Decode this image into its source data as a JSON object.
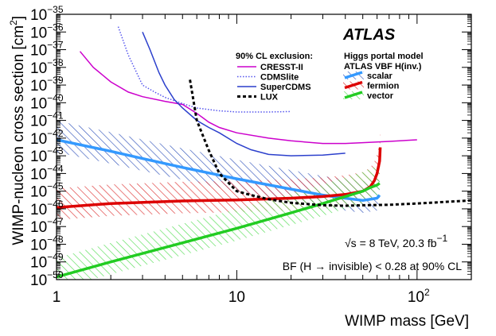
{
  "chart_data": {
    "type": "line",
    "xlabel": "WIMP mass [GeV]",
    "ylabel": "WIMP-nucleon cross section [cm",
    "ylabel_sup": "2",
    "ylabel_close": "]",
    "xscale": "log",
    "yscale": "log",
    "xlim": [
      1,
      200
    ],
    "ylim": [
      1e-50,
      1e-35
    ],
    "x_tick_labels": [
      "1",
      "10"
    ],
    "x_tick_label_hundred": {
      "base": "10",
      "exp": "2"
    },
    "y_tick_labels": [
      {
        "base": "10",
        "exp": "−50"
      },
      {
        "base": "10",
        "exp": "−49"
      },
      {
        "base": "10",
        "exp": "−48"
      },
      {
        "base": "10",
        "exp": "−47"
      },
      {
        "base": "10",
        "exp": "−46"
      },
      {
        "base": "10",
        "exp": "−45"
      },
      {
        "base": "10",
        "exp": "−44"
      },
      {
        "base": "10",
        "exp": "−43"
      },
      {
        "base": "10",
        "exp": "−42"
      },
      {
        "base": "10",
        "exp": "−41"
      },
      {
        "base": "10",
        "exp": "−40"
      },
      {
        "base": "10",
        "exp": "−39"
      },
      {
        "base": "10",
        "exp": "−38"
      },
      {
        "base": "10",
        "exp": "−37"
      },
      {
        "base": "10",
        "exp": "−36"
      },
      {
        "base": "10",
        "exp": "−35"
      }
    ],
    "atlas_label": "ATLAS",
    "legend_left_header": "90% CL exclusion:",
    "legend_right_header_1": "Higgs portal model",
    "legend_right_header_2": "ATLAS VBF H(inv.)",
    "annotation_energy": {
      "prefix": "√s = 8 TeV,  20.3 fb",
      "sup": "−1"
    },
    "annotation_bf": "BF (H → invisible) < 0.28 at 90% CL",
    "series": [
      {
        "name": "CRESST-II",
        "group": "exclusion",
        "color": "#cc00cc",
        "style": "solid",
        "x": [
          1.35,
          1.6,
          2.0,
          2.5,
          3.0,
          4.0,
          5.0,
          6.0,
          7.0,
          8.0,
          10.0,
          15.0,
          20.0,
          30.0,
          40.0,
          50.0,
          70.0,
          100.0
        ],
        "y": [
          8e-38,
          1e-38,
          1.5e-39,
          4e-40,
          2.2e-40,
          1.2e-40,
          8e-41,
          2.5e-41,
          8e-42,
          4e-42,
          2e-42,
          1e-42,
          7e-43,
          5e-43,
          5e-43,
          5.5e-43,
          6.5e-43,
          8e-43
        ]
      },
      {
        "name": "CDMSlite",
        "group": "exclusion",
        "color": "#5555ee",
        "style": "dotted",
        "x": [
          2.2,
          2.5,
          3.0,
          3.5,
          4.0,
          5.0,
          6.0,
          8.0,
          10.0,
          15.0,
          20.0
        ],
        "y": [
          2e-36,
          5e-38,
          1e-39,
          4e-40,
          2e-40,
          9e-41,
          5e-41,
          3.5e-41,
          3e-41,
          3e-41,
          3.2e-41
        ]
      },
      {
        "name": "SuperCDMS",
        "group": "exclusion",
        "color": "#2b3fcc",
        "style": "solid",
        "x": [
          3.0,
          3.3,
          3.7,
          4.0,
          4.5,
          5.0,
          6.0,
          7.0,
          8.0,
          10.0,
          12.0,
          15.0,
          20.0,
          30.0,
          40.0
        ],
        "y": [
          1e-36,
          1e-37,
          5e-39,
          1e-39,
          1.5e-40,
          5e-41,
          1e-41,
          4e-42,
          2e-42,
          5e-43,
          2.2e-43,
          1.2e-43,
          1e-43,
          1.1e-43,
          1.4e-43
        ]
      },
      {
        "name": "LUX",
        "group": "exclusion",
        "color": "#000000",
        "style": "dashed",
        "x": [
          5.5,
          6.0,
          7.0,
          8.0,
          10.0,
          12.0,
          15.0,
          20.0,
          30.0,
          40.0,
          50.0,
          70.0,
          100.0,
          200.0
        ],
        "y": [
          2e-39,
          1e-41,
          2e-43,
          1e-44,
          1e-45,
          6e-46,
          3.5e-46,
          2.2e-46,
          1.6e-46,
          1.5e-46,
          1.6e-46,
          1.7e-46,
          2e-46,
          3e-46
        ]
      },
      {
        "name": "scalar",
        "group": "higgs",
        "color": "#3399ff",
        "hatch": "#3355bb",
        "style": "band",
        "x": [
          1,
          2,
          3,
          5,
          10,
          20,
          30,
          40,
          50,
          60,
          62
        ],
        "y": [
          8e-43,
          1.8e-43,
          7e-44,
          2.2e-44,
          5e-45,
          1.3e-45,
          6e-46,
          4e-46,
          3e-46,
          4e-46,
          6e-46
        ],
        "band_factor_lo": 0.2,
        "band_factor_hi": 12
      },
      {
        "name": "fermion",
        "group": "higgs",
        "color": "#dd0000",
        "hatch": "#dd3333",
        "style": "band",
        "x": [
          1,
          2,
          5,
          10,
          20,
          30,
          40,
          50,
          55,
          58,
          60,
          62,
          62.5
        ],
        "y": [
          1.2e-46,
          2e-46,
          2.8e-46,
          3.2e-46,
          4e-46,
          5e-46,
          6.5e-46,
          1e-45,
          1.8e-45,
          4e-45,
          1e-44,
          5e-44,
          3e-43
        ],
        "band_factor_lo": 0.2,
        "band_factor_hi": 12
      },
      {
        "name": "vector",
        "group": "higgs",
        "color": "#22cc22",
        "hatch": "#55dd55",
        "style": "band",
        "x": [
          1,
          2,
          5,
          10,
          20,
          30,
          40,
          50,
          55,
          60,
          62
        ],
        "y": [
          1.4e-50,
          1e-49,
          1.2e-48,
          8e-48,
          6e-47,
          2e-46,
          5e-46,
          1e-45,
          1.6e-45,
          2.2e-45,
          2.8e-45
        ],
        "band_factor_lo": 0.2,
        "band_factor_hi": 12
      }
    ]
  }
}
